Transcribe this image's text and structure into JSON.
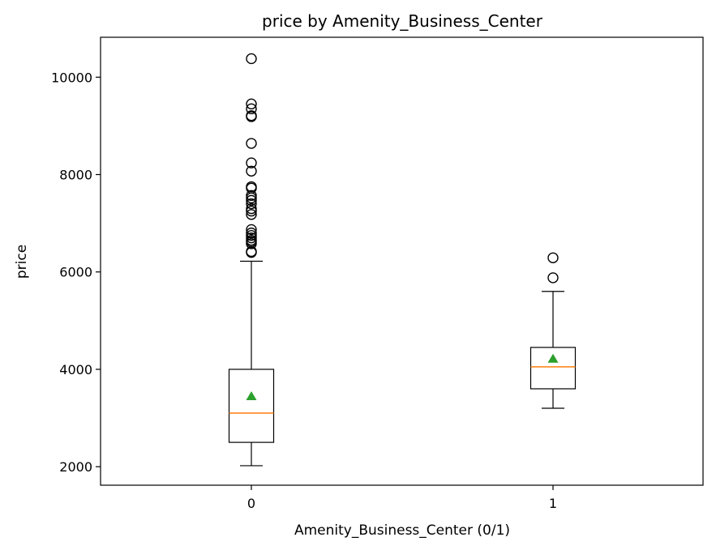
{
  "chart_data": {
    "type": "box",
    "title": "price by Amenity_Business_Center",
    "xlabel": "Amenity_Business_Center (0/1)",
    "ylabel": "price",
    "ylim": [
      1620,
      10820
    ],
    "yticks": [
      2000,
      4000,
      6000,
      8000,
      10000
    ],
    "categories": [
      "0",
      "1"
    ],
    "boxes": [
      {
        "category": "0",
        "whisker_low": 2020,
        "q1": 2500,
        "median": 3100,
        "q3": 4000,
        "whisker_high": 6220,
        "mean": 3450,
        "outliers": [
          6400,
          6420,
          6580,
          6620,
          6650,
          6700,
          6750,
          6800,
          6870,
          7180,
          7250,
          7300,
          7400,
          7470,
          7520,
          7570,
          7720,
          7750,
          8070,
          8240,
          8640,
          9190,
          9210,
          9350,
          9450,
          10380
        ]
      },
      {
        "category": "1",
        "whisker_low": 3200,
        "q1": 3600,
        "median": 4050,
        "q3": 4450,
        "whisker_high": 5600,
        "mean": 4220,
        "outliers": [
          5880,
          6290
        ]
      }
    ],
    "colors": {
      "box": "#000000",
      "median": "#ff7f0e",
      "mean": "#2ca02c",
      "outlier": "#000000"
    },
    "grid": false,
    "legend": "none"
  }
}
